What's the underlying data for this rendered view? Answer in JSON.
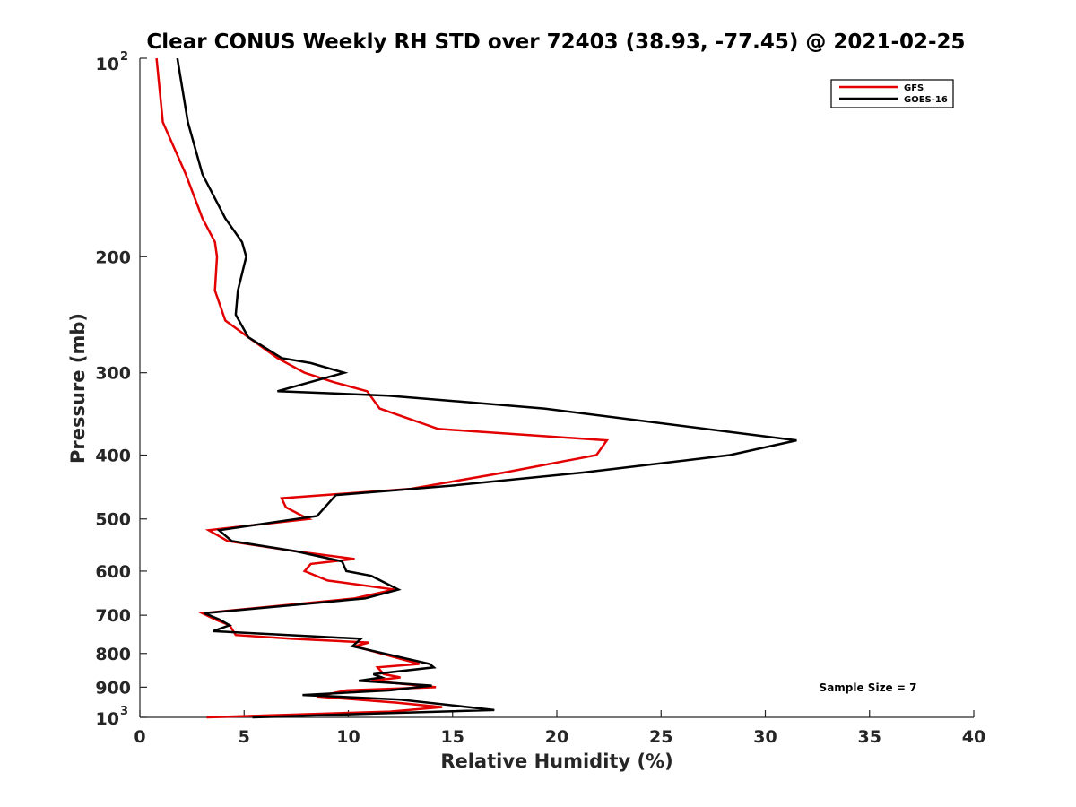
{
  "chart_data": {
    "type": "line",
    "title": "Clear CONUS Weekly RH STD over 72403 (38.93, -77.45) @ 2021-02-25",
    "xlabel": "Relative Humidity (%)",
    "ylabel": "Pressure (mb)",
    "xlim": [
      0,
      40
    ],
    "ylim": [
      100,
      1000
    ],
    "y_scale": "log",
    "y_reversed": true,
    "x_ticks": [
      0,
      5,
      10,
      15,
      20,
      25,
      30,
      35,
      40
    ],
    "x_tick_labels": [
      "0",
      "5",
      "10",
      "15",
      "20",
      "25",
      "30",
      "35",
      "40"
    ],
    "y_ticks": [
      100,
      200,
      300,
      400,
      500,
      600,
      700,
      800,
      900,
      1000
    ],
    "y_tick_labels": [
      "",
      "200",
      "300",
      "400",
      "500",
      "600",
      "700",
      "800",
      "900",
      ""
    ],
    "y_top_label": {
      "base": "10",
      "exp": "2"
    },
    "y_bottom_label": {
      "base": "10",
      "exp": "3"
    },
    "grid": false,
    "legend_position": "top-right",
    "annotation": "Sample Size = 7",
    "series": [
      {
        "name": "GFS",
        "color": "#e30000",
        "points": [
          [
            0.8,
            100
          ],
          [
            1.1,
            125
          ],
          [
            2.2,
            150
          ],
          [
            3.0,
            175
          ],
          [
            3.6,
            190
          ],
          [
            3.7,
            200
          ],
          [
            3.6,
            225
          ],
          [
            4.1,
            250
          ],
          [
            5.2,
            265
          ],
          [
            6.6,
            285
          ],
          [
            7.9,
            300
          ],
          [
            9.3,
            310
          ],
          [
            10.9,
            320
          ],
          [
            11.5,
            340
          ],
          [
            14.3,
            365
          ],
          [
            22.4,
            380
          ],
          [
            21.9,
            400
          ],
          [
            17.5,
            425
          ],
          [
            13.0,
            450
          ],
          [
            6.8,
            465
          ],
          [
            7.0,
            480
          ],
          [
            7.8,
            495
          ],
          [
            8.1,
            500
          ],
          [
            3.3,
            520
          ],
          [
            4.2,
            540
          ],
          [
            7.5,
            560
          ],
          [
            10.3,
            575
          ],
          [
            8.2,
            585
          ],
          [
            7.9,
            600
          ],
          [
            9.0,
            620
          ],
          [
            12.2,
            640
          ],
          [
            10.3,
            660
          ],
          [
            3.0,
            695
          ],
          [
            3.6,
            710
          ],
          [
            4.3,
            725
          ],
          [
            4.6,
            750
          ],
          [
            7.3,
            760
          ],
          [
            11.0,
            770
          ],
          [
            10.3,
            780
          ],
          [
            13.4,
            830
          ],
          [
            11.4,
            840
          ],
          [
            11.7,
            860
          ],
          [
            12.5,
            870
          ],
          [
            11.1,
            880
          ],
          [
            14.2,
            900
          ],
          [
            9.9,
            910
          ],
          [
            8.5,
            930
          ],
          [
            12.3,
            950
          ],
          [
            14.5,
            965
          ],
          [
            12.0,
            980
          ],
          [
            3.2,
            1000
          ]
        ]
      },
      {
        "name": "GOES-16",
        "color": "#000000",
        "points": [
          [
            1.8,
            100
          ],
          [
            2.3,
            125
          ],
          [
            3.0,
            150
          ],
          [
            4.1,
            175
          ],
          [
            4.9,
            190
          ],
          [
            5.1,
            200
          ],
          [
            4.7,
            225
          ],
          [
            4.6,
            245
          ],
          [
            5.2,
            265
          ],
          [
            6.8,
            285
          ],
          [
            8.2,
            290
          ],
          [
            9.8,
            300
          ],
          [
            6.6,
            320
          ],
          [
            11.9,
            325
          ],
          [
            19.4,
            340
          ],
          [
            31.5,
            380
          ],
          [
            28.3,
            400
          ],
          [
            21.3,
            425
          ],
          [
            15.0,
            445
          ],
          [
            9.4,
            460
          ],
          [
            8.5,
            495
          ],
          [
            3.8,
            520
          ],
          [
            4.4,
            540
          ],
          [
            7.5,
            560
          ],
          [
            9.7,
            580
          ],
          [
            9.8,
            590
          ],
          [
            9.9,
            600
          ],
          [
            11.1,
            610
          ],
          [
            12.4,
            640
          ],
          [
            10.8,
            660
          ],
          [
            3.1,
            695
          ],
          [
            3.8,
            710
          ],
          [
            4.3,
            725
          ],
          [
            3.5,
            740
          ],
          [
            10.6,
            760
          ],
          [
            10.2,
            780
          ],
          [
            13.9,
            830
          ],
          [
            14.1,
            840
          ],
          [
            11.2,
            860
          ],
          [
            11.6,
            870
          ],
          [
            10.5,
            880
          ],
          [
            14.0,
            895
          ],
          [
            12.0,
            910
          ],
          [
            7.8,
            925
          ],
          [
            12.5,
            940
          ],
          [
            17.0,
            975
          ],
          [
            12.0,
            985
          ],
          [
            5.4,
            1000
          ]
        ]
      }
    ]
  }
}
